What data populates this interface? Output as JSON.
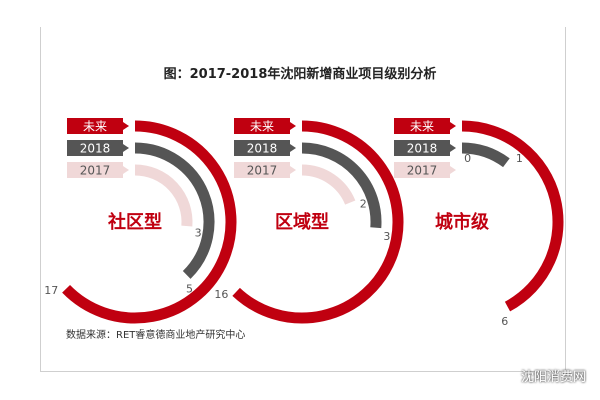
{
  "chart_data": {
    "type": "radial-bar",
    "title": "图：2017-2018年沈阳新增商业项目级别分析",
    "series_names": [
      "未来",
      "2018",
      "2017"
    ],
    "colors": {
      "未来": "#c00010",
      "2018": "#555555",
      "2017": "#f0d8d8"
    },
    "groups": [
      {
        "name": "社区型",
        "values": {
          "未来": 17,
          "2018": 5,
          "2017": 3
        }
      },
      {
        "name": "区域型",
        "values": {
          "未来": 16,
          "2018": 3,
          "2017": 2
        }
      },
      {
        "name": "城市级",
        "values": {
          "未来": 6,
          "2018": 1,
          "2017": 0
        }
      }
    ],
    "source": "数据来源：RET睿意德商业地产研究中心"
  },
  "watermark": "沈阳消费网"
}
